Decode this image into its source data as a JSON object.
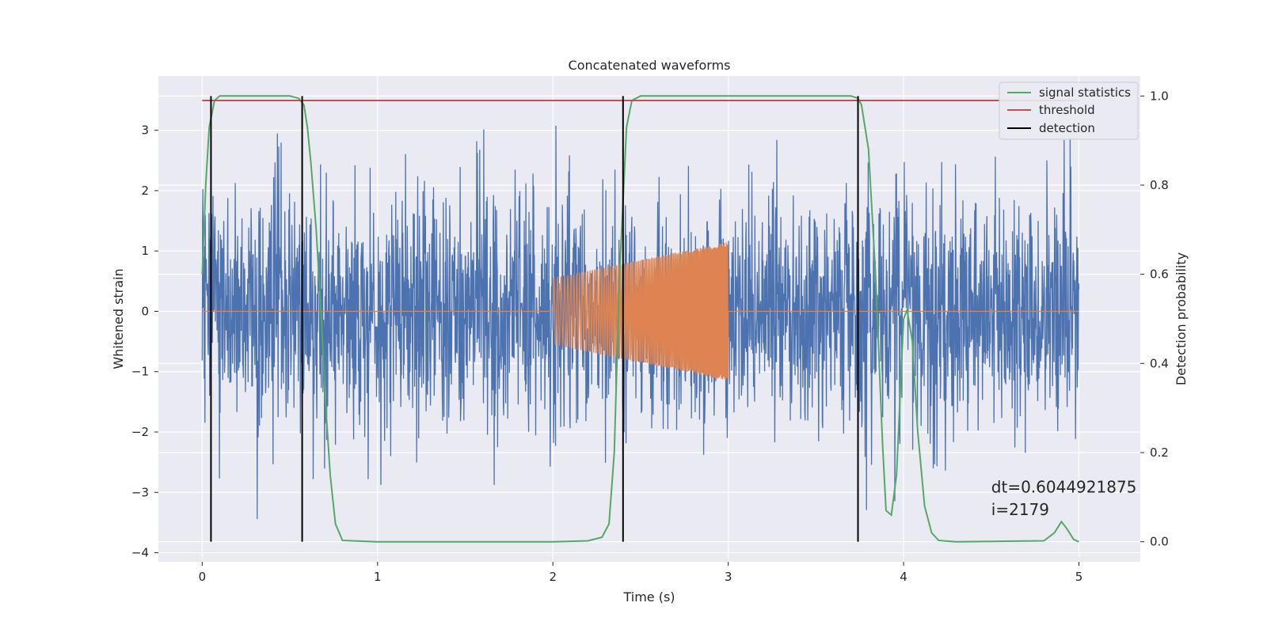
{
  "chart_data": {
    "type": "line",
    "title": "Concatenated waveforms",
    "xlabel": "Time (s)",
    "ylabel_left": "Whitened strain",
    "ylabel_right": "Detection probability",
    "xlim": [
      -0.25,
      5.35
    ],
    "ylim_left": [
      -4.15,
      3.9
    ],
    "ylim_right": [
      -0.045,
      1.045
    ],
    "x_ticks": [
      0,
      1,
      2,
      3,
      4,
      5
    ],
    "y_ticks_left": [
      -4,
      -3,
      -2,
      -1,
      0,
      1,
      2,
      3
    ],
    "y_ticks_right": [
      0.0,
      0.2,
      0.4,
      0.6,
      0.8,
      1.0
    ],
    "x_tick_labels": [
      "0",
      "1",
      "2",
      "3",
      "4",
      "5"
    ],
    "y_tick_labels_left": [
      "−4",
      "−3",
      "−2",
      "−1",
      "0",
      "1",
      "2",
      "3"
    ],
    "y_tick_labels_right": [
      "0.0",
      "0.2",
      "0.4",
      "0.6",
      "0.8",
      "1.0"
    ],
    "grid": true,
    "legend_position": "top-right",
    "series": [
      {
        "name": "",
        "kind": "noisy strain",
        "axis": "left",
        "color": "#4c72b0",
        "x_range": [
          0,
          5
        ],
        "typical_range": [
          -2.4,
          2.6
        ],
        "extremes": {
          "max": 3.55,
          "min": -3.8
        }
      },
      {
        "name": "",
        "kind": "injected chirp",
        "axis": "left",
        "color": "#dd8452",
        "x_range": [
          2,
          3
        ],
        "amplitude": [
          0.55,
          1.15
        ],
        "baseline": 0
      },
      {
        "name": "signal statistics",
        "axis": "right",
        "color": "#55a868",
        "x": [
          0,
          0.02,
          0.04,
          0.07,
          0.1,
          0.2,
          0.3,
          0.4,
          0.5,
          0.55,
          0.58,
          0.6,
          0.62,
          0.65,
          0.68,
          0.7,
          0.73,
          0.76,
          0.8,
          1.0,
          2.0,
          2.2,
          2.28,
          2.32,
          2.35,
          2.38,
          2.42,
          2.45,
          2.5,
          2.6,
          3.0,
          3.5,
          3.7,
          3.74,
          3.76,
          3.8,
          3.84,
          3.88,
          3.9,
          3.93,
          3.96,
          4.0,
          4.02,
          4.05,
          4.08,
          4.12,
          4.16,
          4.2,
          4.3,
          4.8,
          4.86,
          4.9,
          4.93,
          4.97,
          5.0
        ],
        "y": [
          0.6,
          0.8,
          0.93,
          0.99,
          1.0,
          1.0,
          1.0,
          1.0,
          1.0,
          0.995,
          0.98,
          0.93,
          0.85,
          0.7,
          0.5,
          0.33,
          0.15,
          0.04,
          0.003,
          0.0,
          0.0,
          0.002,
          0.01,
          0.04,
          0.2,
          0.6,
          0.93,
          0.99,
          1.0,
          1.0,
          1.0,
          1.0,
          1.0,
          0.995,
          0.98,
          0.88,
          0.6,
          0.22,
          0.07,
          0.06,
          0.15,
          0.5,
          0.52,
          0.45,
          0.25,
          0.08,
          0.02,
          0.003,
          0.0,
          0.002,
          0.02,
          0.045,
          0.03,
          0.005,
          0.0
        ]
      },
      {
        "name": "threshold",
        "axis": "right",
        "color": "#c44e52",
        "x": [
          0,
          5
        ],
        "y": [
          0.99,
          0.99
        ]
      },
      {
        "name": "detection",
        "axis": "right",
        "color": "#000000",
        "type": "vlines",
        "x": [
          0.05,
          0.57,
          2.4,
          3.74
        ],
        "ymin": 0.0,
        "ymax": 1.0
      }
    ],
    "annotations": [
      {
        "text": "dt=0.6044921875",
        "x": 4.5,
        "y_right": 0.11
      },
      {
        "text": " i=2179",
        "x": 4.5,
        "y_right": 0.06
      }
    ]
  }
}
